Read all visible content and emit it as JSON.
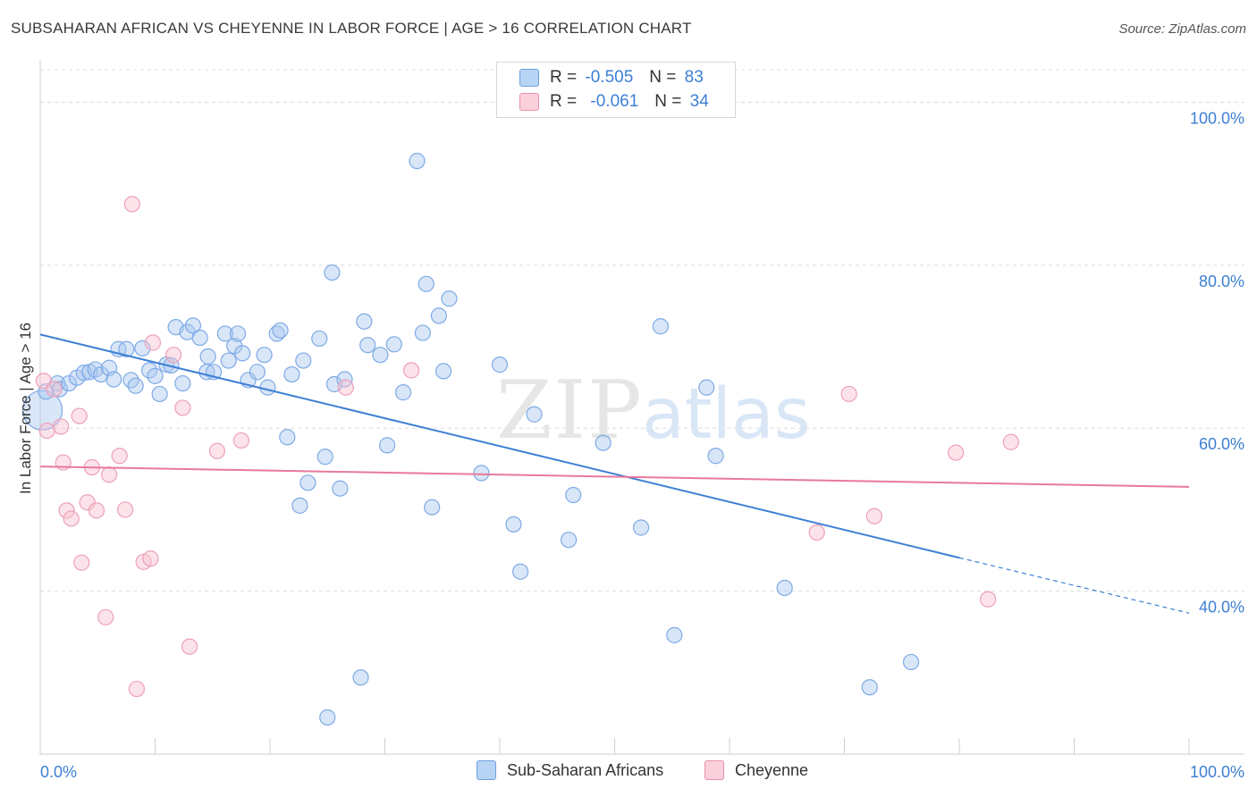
{
  "title": "SUBSAHARAN AFRICAN VS CHEYENNE IN LABOR FORCE | AGE > 16 CORRELATION CHART",
  "source": "Source: ZipAtlas.com",
  "watermark": {
    "zip": "ZIP",
    "atlas": "atlas"
  },
  "legend": {
    "r_label": "R =",
    "n_label": "N =",
    "rows": [
      {
        "r": "-0.505",
        "n": "83",
        "color": "#a8c8f0",
        "border": "#6a9fe0"
      },
      {
        "r": "-0.061",
        "n": "34",
        "color": "#f8c0d0",
        "border": "#e890a8"
      }
    ]
  },
  "bottom_legend": [
    {
      "label": "Sub-Saharan Africans",
      "color": "#b8d4f4",
      "border": "#6a9fe0"
    },
    {
      "label": "Cheyenne",
      "color": "#fad0dc",
      "border": "#e890a8"
    }
  ],
  "chart_data": {
    "type": "scatter",
    "title": "SUBSAHARAN AFRICAN VS CHEYENNE IN LABOR FORCE | AGE > 16 CORRELATION CHART",
    "xlabel": "",
    "ylabel": "In Labor Force | Age > 16",
    "xlim": [
      0,
      100
    ],
    "ylim": [
      20,
      105
    ],
    "x_tick_labels": [
      "0.0%",
      "100.0%"
    ],
    "y_ticks": [
      40,
      60,
      80,
      100
    ],
    "y_tick_labels": [
      "40.0%",
      "60.0%",
      "80.0%",
      "100.0%"
    ],
    "grid": true,
    "colors": {
      "blue": "#3d7fd4",
      "pink": "#e8799c",
      "blue_fill": "rgba(168,200,240,0.45)",
      "pink_fill": "rgba(248,192,208,0.45)"
    },
    "series": [
      {
        "name": "Sub-Saharan Africans",
        "trend": {
          "x0": 0,
          "y0": 71.5,
          "x1": 80,
          "y1": 44.1,
          "dash_to_x": 100,
          "dash_to_y": 37.3
        },
        "points": [
          [
            0.2,
            62.2
          ],
          [
            0.5,
            64.5
          ],
          [
            1.5,
            65.5
          ],
          [
            1.7,
            64.8
          ],
          [
            2.5,
            65.5
          ],
          [
            3.2,
            66.2
          ],
          [
            3.8,
            66.8
          ],
          [
            4.3,
            66.9
          ],
          [
            4.8,
            67.2
          ],
          [
            5.3,
            66.6
          ],
          [
            6.0,
            67.4
          ],
          [
            6.4,
            66.0
          ],
          [
            6.8,
            69.7
          ],
          [
            7.5,
            69.7
          ],
          [
            7.9,
            65.9
          ],
          [
            8.3,
            65.2
          ],
          [
            8.9,
            69.8
          ],
          [
            9.5,
            67.1
          ],
          [
            10.0,
            66.4
          ],
          [
            10.4,
            64.2
          ],
          [
            11.0,
            67.8
          ],
          [
            11.4,
            67.7
          ],
          [
            11.8,
            72.4
          ],
          [
            12.4,
            65.5
          ],
          [
            12.8,
            71.8
          ],
          [
            13.3,
            72.6
          ],
          [
            13.9,
            71.1
          ],
          [
            14.5,
            66.9
          ],
          [
            14.6,
            68.8
          ],
          [
            15.1,
            66.9
          ],
          [
            16.1,
            71.6
          ],
          [
            16.4,
            68.3
          ],
          [
            16.9,
            70.1
          ],
          [
            17.2,
            71.6
          ],
          [
            17.6,
            69.2
          ],
          [
            18.1,
            65.9
          ],
          [
            18.9,
            66.9
          ],
          [
            19.5,
            69.0
          ],
          [
            19.8,
            65.0
          ],
          [
            20.6,
            71.6
          ],
          [
            20.9,
            72.0
          ],
          [
            21.5,
            58.9
          ],
          [
            21.9,
            66.6
          ],
          [
            22.6,
            50.5
          ],
          [
            22.9,
            68.3
          ],
          [
            23.3,
            53.3
          ],
          [
            24.3,
            71.0
          ],
          [
            24.8,
            56.5
          ],
          [
            25.0,
            24.5
          ],
          [
            25.4,
            79.1
          ],
          [
            25.6,
            65.4
          ],
          [
            26.1,
            52.6
          ],
          [
            26.5,
            66.0
          ],
          [
            27.9,
            29.4
          ],
          [
            28.2,
            73.1
          ],
          [
            28.5,
            70.2
          ],
          [
            29.6,
            69.0
          ],
          [
            30.2,
            57.9
          ],
          [
            30.8,
            70.3
          ],
          [
            31.6,
            64.4
          ],
          [
            32.8,
            92.8
          ],
          [
            33.3,
            71.7
          ],
          [
            33.6,
            77.7
          ],
          [
            34.1,
            50.3
          ],
          [
            34.7,
            73.8
          ],
          [
            35.1,
            67.0
          ],
          [
            35.6,
            75.9
          ],
          [
            38.4,
            54.5
          ],
          [
            40.0,
            67.8
          ],
          [
            41.2,
            48.2
          ],
          [
            41.8,
            42.4
          ],
          [
            43.0,
            61.7
          ],
          [
            46.0,
            46.3
          ],
          [
            46.4,
            51.8
          ],
          [
            49.0,
            58.2
          ],
          [
            52.3,
            47.8
          ],
          [
            54.0,
            72.5
          ],
          [
            55.2,
            34.6
          ],
          [
            58.0,
            65.0
          ],
          [
            58.8,
            56.6
          ],
          [
            64.8,
            40.4
          ],
          [
            72.2,
            28.2
          ],
          [
            75.8,
            31.3
          ]
        ]
      },
      {
        "name": "Cheyenne",
        "trend": {
          "x0": 0,
          "y0": 55.3,
          "x1": 100,
          "y1": 52.8
        },
        "points": [
          [
            0.3,
            65.8
          ],
          [
            0.6,
            59.7
          ],
          [
            1.2,
            64.8
          ],
          [
            1.8,
            60.2
          ],
          [
            2.0,
            55.8
          ],
          [
            2.3,
            49.9
          ],
          [
            2.7,
            48.9
          ],
          [
            3.4,
            61.5
          ],
          [
            3.6,
            43.5
          ],
          [
            4.1,
            50.9
          ],
          [
            4.5,
            55.2
          ],
          [
            4.9,
            49.9
          ],
          [
            5.7,
            36.8
          ],
          [
            6.0,
            54.3
          ],
          [
            6.9,
            56.6
          ],
          [
            7.4,
            50.0
          ],
          [
            8.0,
            87.5
          ],
          [
            8.4,
            28.0
          ],
          [
            9.0,
            43.6
          ],
          [
            9.6,
            44.0
          ],
          [
            9.8,
            70.5
          ],
          [
            11.6,
            69.0
          ],
          [
            12.4,
            62.5
          ],
          [
            13.0,
            33.2
          ],
          [
            15.4,
            57.2
          ],
          [
            17.5,
            58.5
          ],
          [
            26.6,
            65.0
          ],
          [
            32.3,
            67.1
          ],
          [
            67.6,
            47.2
          ],
          [
            70.4,
            64.2
          ],
          [
            72.6,
            49.2
          ],
          [
            79.7,
            57.0
          ],
          [
            82.5,
            39.0
          ],
          [
            84.5,
            58.3
          ]
        ]
      }
    ]
  }
}
